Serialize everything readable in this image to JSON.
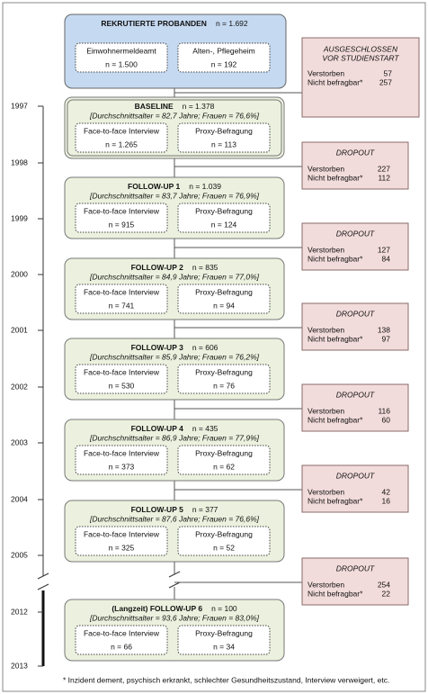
{
  "header": {
    "title": "REKRUTIERTE PROBANDEN",
    "n": "n = 1.692",
    "sources": [
      {
        "label": "Einwohnermeldeamt",
        "n": "n = 1.500"
      },
      {
        "label": "Alten-, Pflegeheim",
        "n": "n = 192"
      }
    ]
  },
  "excluded": {
    "title": [
      "AUSGESCHLOSSEN",
      "VOR STUDIENSTART"
    ],
    "rows": [
      {
        "label": "Verstorben",
        "value": "57"
      },
      {
        "label": "Nicht befragbar*",
        "value": "257"
      }
    ]
  },
  "stages": [
    {
      "title": "BASELINE",
      "n": "n = 1.378",
      "stats": "[Durchschnittsalter = 82,7 Jahre; Frauen = 76,6%]",
      "groups": [
        {
          "label": "Face-to-face Interview",
          "n": "n = 1.265"
        },
        {
          "label": "Proxy-Befragung",
          "n": "n = 113"
        }
      ]
    },
    {
      "title": "FOLLOW-UP 1",
      "n": "n = 1.039",
      "stats": "[Durchschnittsalter = 83,7 Jahre; Frauen = 76,9%]",
      "groups": [
        {
          "label": "Face-to-face Interview",
          "n": "n = 915"
        },
        {
          "label": "Proxy-Befragung",
          "n": "n = 124"
        }
      ]
    },
    {
      "title": "FOLLOW-UP 2",
      "n": "n = 835",
      "stats": "[Durchschnittsalter = 84,9 Jahre; Frauen = 77,0%]",
      "groups": [
        {
          "label": "Face-to-face Interview",
          "n": "n = 741"
        },
        {
          "label": "Proxy-Befragung",
          "n": "n = 94"
        }
      ]
    },
    {
      "title": "FOLLOW-UP 3",
      "n": "n = 606",
      "stats": "[Durchschnittsalter = 85,9 Jahre; Frauen = 76,2%]",
      "groups": [
        {
          "label": "Face-to-face Interview",
          "n": "n = 530"
        },
        {
          "label": "Proxy-Befragung",
          "n": "n = 76"
        }
      ]
    },
    {
      "title": "FOLLOW-UP 4",
      "n": "n = 435",
      "stats": "[Durchschnittsalter = 86,9 Jahre; Frauen = 77,9%]",
      "groups": [
        {
          "label": "Face-to-face Interview",
          "n": "n = 373"
        },
        {
          "label": "Proxy-Befragung",
          "n": "n = 62"
        }
      ]
    },
    {
      "title": "FOLLOW-UP 5",
      "n": "n = 377",
      "stats": "[Durchschnittsalter = 87,6 Jahre; Frauen = 76,6%]",
      "groups": [
        {
          "label": "Face-to-face Interview",
          "n": "n = 325"
        },
        {
          "label": "Proxy-Befragung",
          "n": "n = 52"
        }
      ]
    },
    {
      "title": "(Langzeit) FOLLOW-UP 6",
      "n": "n = 100",
      "stats": "[Durchschnittsalter = 93,6 Jahre; Frauen = 83,0%]",
      "groups": [
        {
          "label": "Face-to-face Interview",
          "n": "n = 66"
        },
        {
          "label": "Proxy-Befragung",
          "n": "n = 34"
        }
      ]
    }
  ],
  "dropouts": [
    {
      "title": "DROPOUT",
      "rows": [
        {
          "label": "Verstorben",
          "value": "227"
        },
        {
          "label": "Nicht befragbar*",
          "value": "112"
        }
      ]
    },
    {
      "title": "DROPOUT",
      "rows": [
        {
          "label": "Verstorben",
          "value": "127"
        },
        {
          "label": "Nicht befragbar*",
          "value": "84"
        }
      ]
    },
    {
      "title": "DROPOUT",
      "rows": [
        {
          "label": "Verstorben",
          "value": "138"
        },
        {
          "label": "Nicht befragbar*",
          "value": "97"
        }
      ]
    },
    {
      "title": "DROPOUT",
      "rows": [
        {
          "label": "Verstorben",
          "value": "116"
        },
        {
          "label": "Nicht befragbar*",
          "value": "60"
        }
      ]
    },
    {
      "title": "DROPOUT",
      "rows": [
        {
          "label": "Verstorben",
          "value": "42"
        },
        {
          "label": "Nicht befragbar*",
          "value": "16"
        }
      ]
    },
    {
      "title": "DROPOUT",
      "rows": [
        {
          "label": "Verstorben",
          "value": "254"
        },
        {
          "label": "Nicht befragbar*",
          "value": "22"
        }
      ]
    }
  ],
  "years": [
    "1997",
    "1998",
    "1999",
    "2000",
    "2001",
    "2002",
    "2003",
    "2004",
    "2005",
    "2012",
    "2013"
  ],
  "footnote": "* Inzident dement, psychisch erkrankt, schlechter Gesundheitszustand, Interview verweigert, etc."
}
